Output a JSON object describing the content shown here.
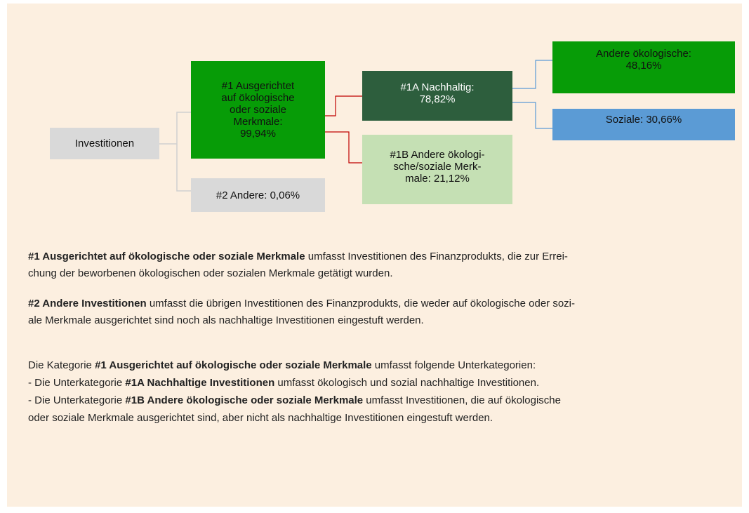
{
  "diagram": {
    "nodes": [
      {
        "lines": [
          "Investitionen"
        ]
      },
      {
        "lines": [
          "#1 Ausgerichtet",
          "auf ökologische",
          "oder soziale",
          "Merkmale:",
          "99,94%"
        ]
      },
      {
        "lines": [
          "#2 Andere: 0,06%"
        ]
      },
      {
        "lines": [
          "#1A Nachhaltig:",
          "78,82%"
        ]
      },
      {
        "lines": [
          "#1B Andere ökologi-",
          "sche/soziale Merk-",
          "male: 21,12%"
        ]
      },
      {
        "lines": [
          "Andere ökologische:",
          "48,16%"
        ]
      },
      {
        "lines": [
          "Soziale: 30,66%"
        ]
      }
    ]
  },
  "text": {
    "paragraphs": [
      [
        [
          {
            "b": "#1 Ausgerichtet auf ökologische oder soziale Merkmale"
          },
          {
            "t": " umfasst Investitionen des Finanzprodukts, die zur Errei-"
          }
        ],
        [
          {
            "t": "chung der beworbenen ökologischen oder sozialen Merkmale getätigt wurden."
          }
        ]
      ],
      [
        [
          {
            "b": "#2 Andere Investitionen"
          },
          {
            "t": " umfasst die übrigen Investitionen des Finanzprodukts, die weder auf ökologische oder sozi-"
          }
        ],
        [
          {
            "t": "ale Merkmale ausgerichtet sind noch als nachhaltige Investitionen eingestuft werden."
          }
        ]
      ],
      [
        [
          {
            "t": "Die Kategorie "
          },
          {
            "b": "#1 Ausgerichtet auf ökologische oder soziale Merkmale"
          },
          {
            "t": " umfasst folgende Unterkategorien:"
          }
        ],
        [
          {
            "t": "- Die Unterkategorie "
          },
          {
            "b": "#1A Nachhaltige Investitionen"
          },
          {
            "t": " umfasst ökologisch und sozial nachhaltige Investitionen."
          }
        ],
        [
          {
            "t": "- Die Unterkategorie "
          },
          {
            "b": "#1B Andere ökologische oder soziale Merkmale"
          },
          {
            "t": " umfasst Investitionen, die auf ökologische"
          }
        ],
        [
          {
            "t": "oder soziale Merkmale ausgerichtet sind, aber nicht als nachhaltige Investitionen eingestuft werden."
          }
        ]
      ]
    ]
  }
}
